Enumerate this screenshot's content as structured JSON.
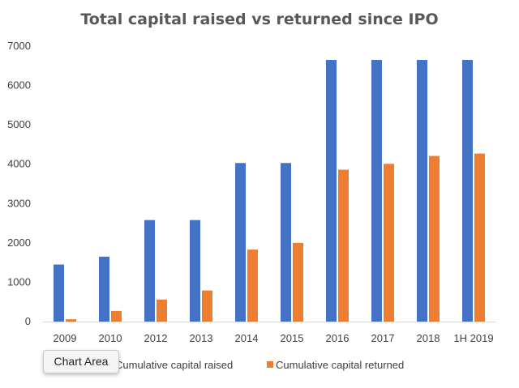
{
  "chart_data": {
    "type": "bar",
    "title": "Total capital raised vs returned since IPO",
    "categories": [
      "2009",
      "2010",
      "2012",
      "2013",
      "2014",
      "2015",
      "2016",
      "2017",
      "2018",
      "1H 2019"
    ],
    "series": [
      {
        "name": "Cumulative capital raised",
        "color": "#4472c4",
        "values": [
          1450,
          1650,
          2580,
          2580,
          4030,
          4030,
          6650,
          6650,
          6650,
          6650
        ]
      },
      {
        "name": "Cumulative capital returned",
        "color": "#ed7d31",
        "values": [
          60,
          270,
          560,
          790,
          1830,
          2000,
          3860,
          4010,
          4210,
          4270
        ]
      }
    ],
    "ylim": [
      0,
      7000
    ],
    "yticks": [
      "0",
      "1000",
      "2000",
      "3000",
      "4000",
      "5000",
      "6000",
      "7000"
    ],
    "grid": false,
    "legend": "bottom"
  },
  "tooltip": {
    "label": "Chart Area"
  }
}
